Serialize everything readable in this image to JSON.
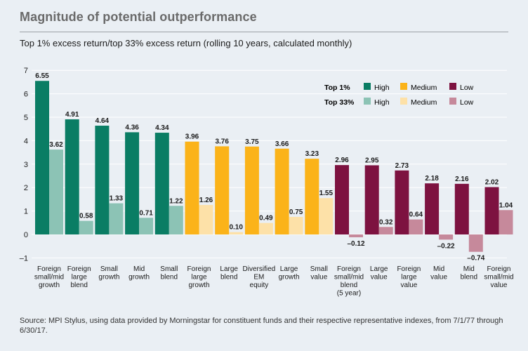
{
  "page": {
    "title": "Magnitude of potential outperformance",
    "source": "Source: MPI Stylus, using data provided by Morningstar for constituent funds and their respective representative indexes, from 7/1/77 through 6/30/17."
  },
  "colors": {
    "high_top1": "#0a7d64",
    "high_top33": "#8cc3b5",
    "medium_top1": "#fbb319",
    "medium_top33": "#fde1a8",
    "low_top1": "#7d1240",
    "low_top33": "#c6899b",
    "grid": "#ffffff",
    "axis_text": "#1a1a1a"
  },
  "legend": {
    "row_top1": "Top 1%",
    "row_top33": "Top 33%",
    "high": "High",
    "medium": "Medium",
    "low": "Low"
  },
  "chart_data": {
    "type": "bar",
    "title": "Top 1% excess return/top 33% excess return (rolling 10 years, calculated monthly)",
    "xlabel": "",
    "ylabel": "",
    "ylim": [
      -1,
      7
    ],
    "yticks": [
      -1,
      0,
      1,
      2,
      3,
      4,
      5,
      6,
      7
    ],
    "ytick_labels": [
      "–1",
      "0",
      "1",
      "2",
      "3",
      "4",
      "5",
      "6",
      "7"
    ],
    "grid": true,
    "legend_position": "top-right",
    "categories": [
      [
        "Foreign",
        "small/mid",
        "growth"
      ],
      [
        "Foreign",
        "large",
        "blend"
      ],
      [
        "Small",
        "growth"
      ],
      [
        "Mid",
        "growth"
      ],
      [
        "Small",
        "blend"
      ],
      [
        "Foreign",
        "large",
        "growth"
      ],
      [
        "Large",
        "blend"
      ],
      [
        "Diversified",
        "EM",
        "equity"
      ],
      [
        "Large",
        "growth"
      ],
      [
        "Small",
        "value"
      ],
      [
        "Foreign",
        "small/mid",
        "blend",
        "(5 year)"
      ],
      [
        "Large",
        "value"
      ],
      [
        "Foreign",
        "large",
        "value"
      ],
      [
        "Mid",
        "value"
      ],
      [
        "Mid",
        "blend"
      ],
      [
        "Foreign",
        "small/mid",
        "value"
      ]
    ],
    "groups": [
      "high",
      "high",
      "high",
      "high",
      "high",
      "medium",
      "medium",
      "medium",
      "medium",
      "medium",
      "low",
      "low",
      "low",
      "low",
      "low",
      "low"
    ],
    "series": [
      {
        "name": "Top 1%",
        "values": [
          6.55,
          4.91,
          4.64,
          4.36,
          4.34,
          3.96,
          3.76,
          3.75,
          3.66,
          3.23,
          2.96,
          2.95,
          2.73,
          2.18,
          2.16,
          2.02
        ],
        "labels": [
          "6.55",
          "4.91",
          "4.64",
          "4.36",
          "4.34",
          "3.96",
          "3.76",
          "3.75",
          "3.66",
          "3.23",
          "2.96",
          "2.95",
          "2.73",
          "2.18",
          "2.16",
          "2.02"
        ]
      },
      {
        "name": "Top 33%",
        "values": [
          3.62,
          0.58,
          1.33,
          0.71,
          1.22,
          1.26,
          0.1,
          0.49,
          0.75,
          1.55,
          -0.12,
          0.32,
          0.64,
          -0.22,
          -0.74,
          1.04
        ],
        "labels": [
          "3.62",
          "0.58",
          "1.33",
          "0.71",
          "1.22",
          "1.26",
          "0.10",
          "0.49",
          "0.75",
          "1.55",
          "–0.12",
          "0.32",
          "0.64",
          "–0.22",
          "–0.74",
          "1.04"
        ]
      }
    ]
  }
}
